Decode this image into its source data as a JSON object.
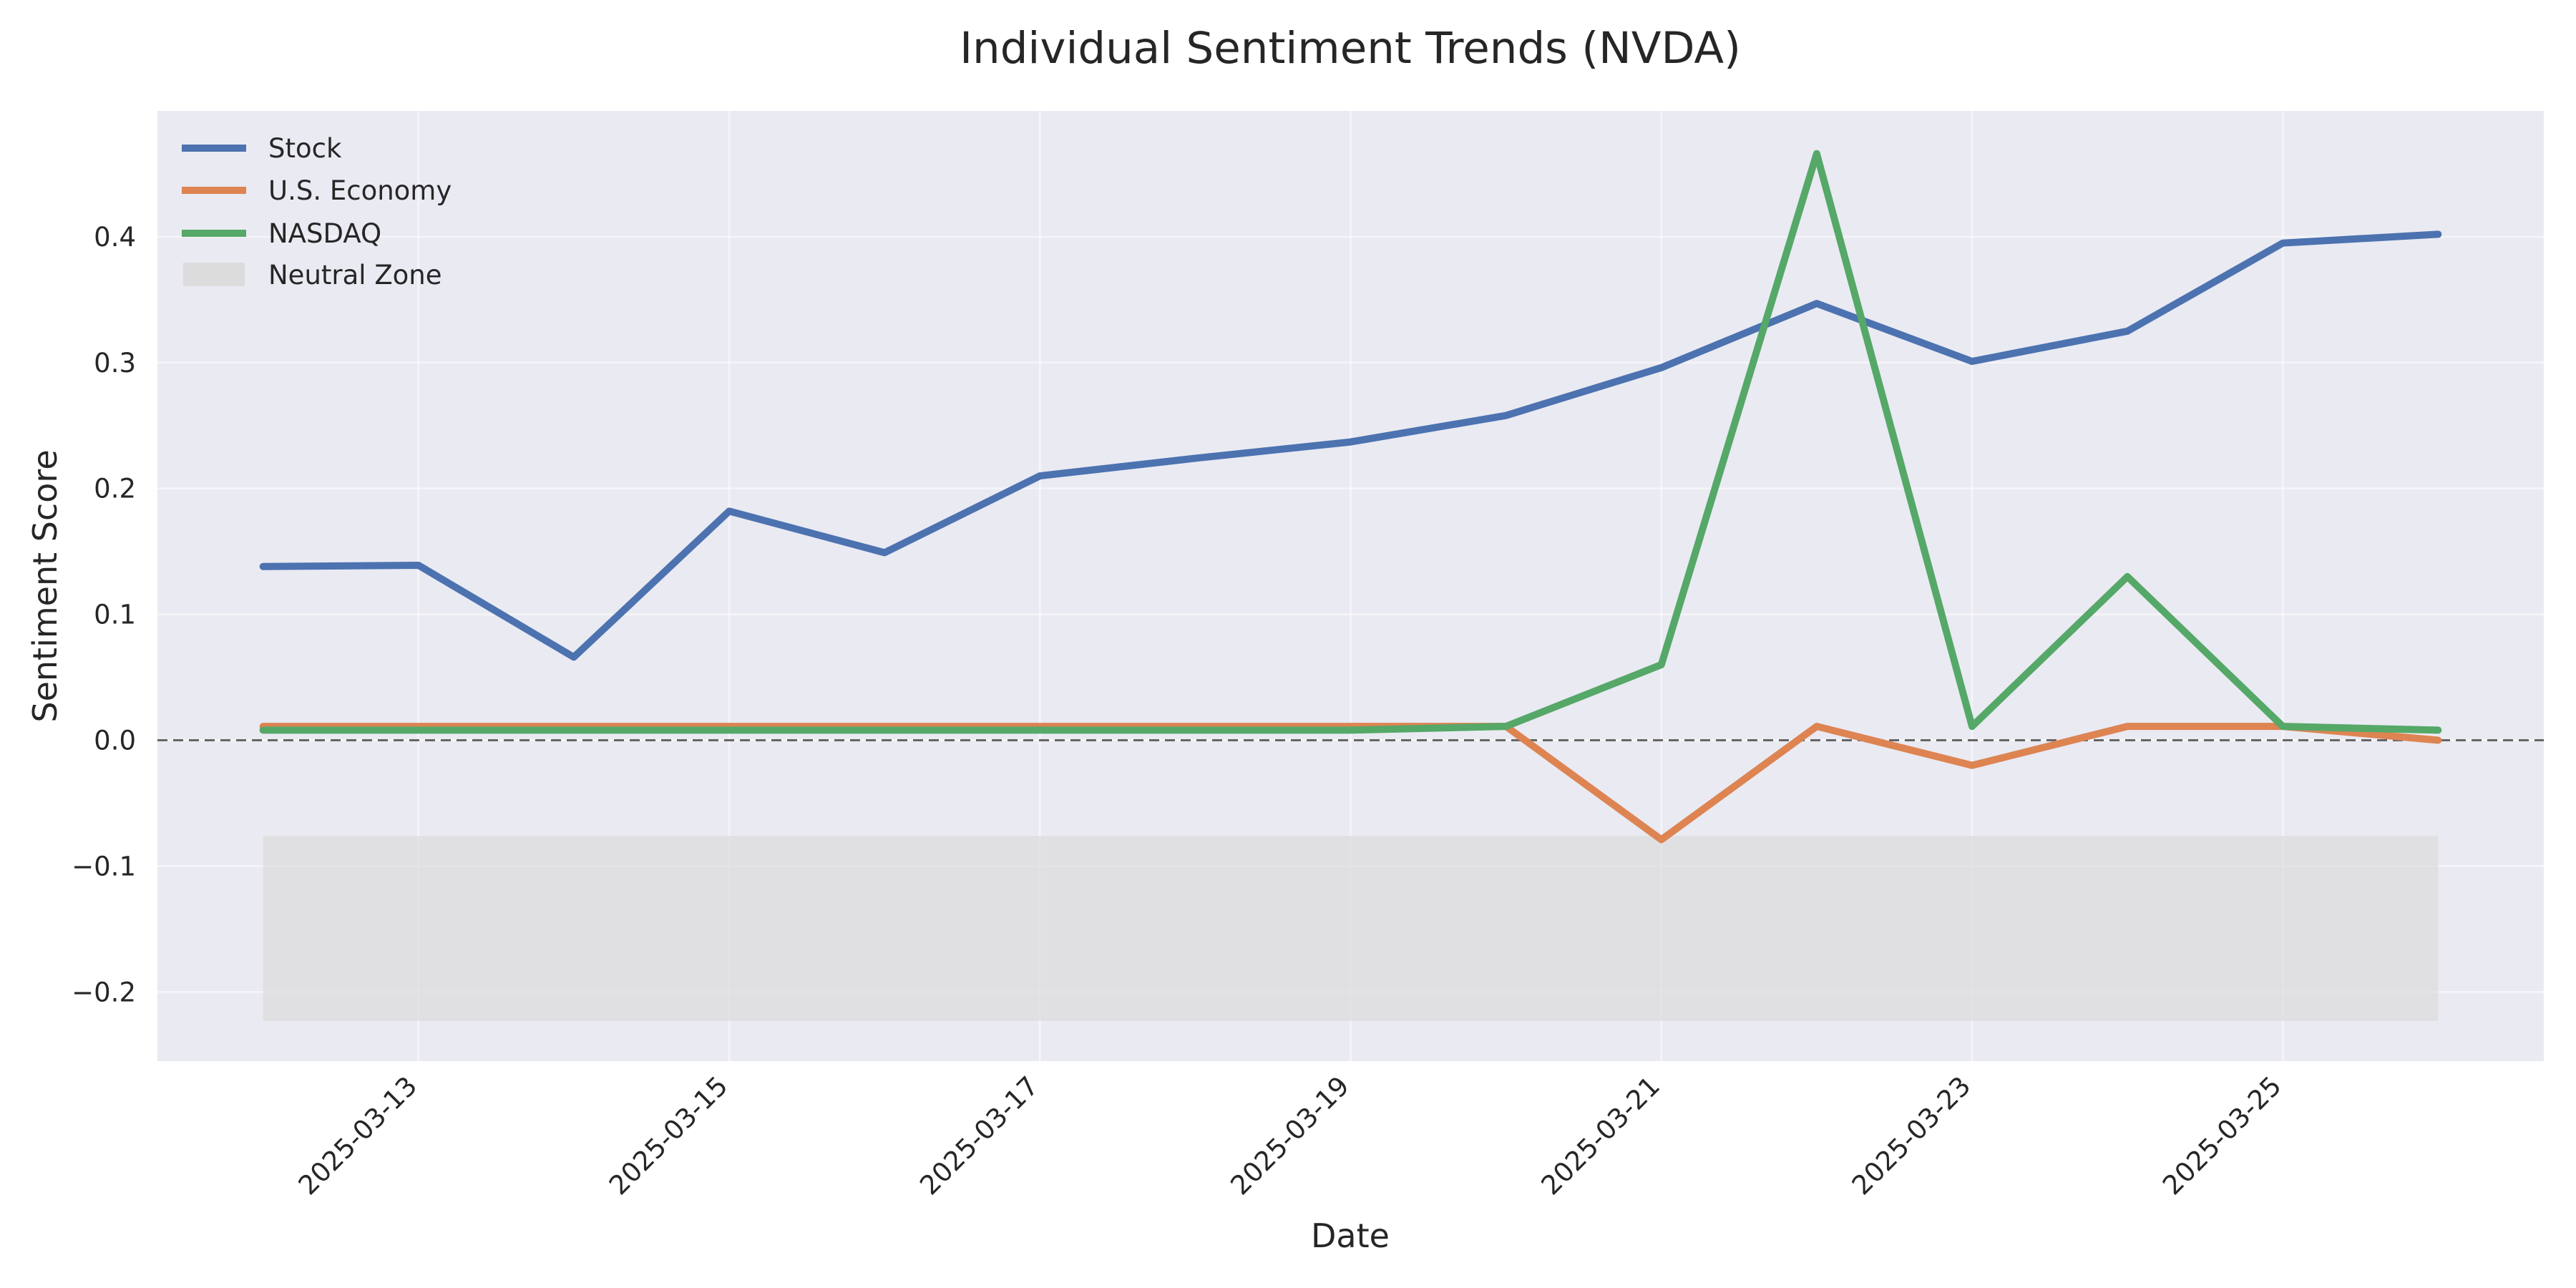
{
  "chart_data": {
    "type": "line",
    "title": "Individual Sentiment Trends (NVDA)",
    "xlabel": "Date",
    "ylabel": "Sentiment Score",
    "x": [
      "2025-03-12",
      "2025-03-13",
      "2025-03-14",
      "2025-03-15",
      "2025-03-16",
      "2025-03-17",
      "2025-03-18",
      "2025-03-19",
      "2025-03-20",
      "2025-03-21",
      "2025-03-22",
      "2025-03-23",
      "2025-03-24",
      "2025-03-25",
      "2025-03-26"
    ],
    "x_ticks": [
      "2025-03-13",
      "2025-03-15",
      "2025-03-17",
      "2025-03-19",
      "2025-03-21",
      "2025-03-23",
      "2025-03-25"
    ],
    "xlim": [
      "2025-03-11.32",
      "2025-03-26.68"
    ],
    "y_ticks": [
      -0.2,
      -0.1,
      0.0,
      0.1,
      0.2,
      0.3,
      0.4
    ],
    "y_tick_labels": [
      "−0.2",
      "−0.1",
      "0.0",
      "0.1",
      "0.2",
      "0.3",
      "0.4"
    ],
    "ylim": [
      -0.255,
      0.5
    ],
    "series": [
      {
        "name": "Stock",
        "color": "#4c72b0",
        "values": [
          0.138,
          0.139,
          0.066,
          0.182,
          0.149,
          0.21,
          0.224,
          0.237,
          0.258,
          0.296,
          0.347,
          0.301,
          0.325,
          0.395,
          0.402
        ]
      },
      {
        "name": "U.S. Economy",
        "color": "#dd8452",
        "values": [
          0.011,
          0.011,
          0.011,
          0.011,
          0.011,
          0.011,
          0.011,
          0.011,
          0.011,
          -0.079,
          0.011,
          -0.02,
          0.011,
          0.011,
          0.0
        ]
      },
      {
        "name": "NASDAQ",
        "color": "#55a868",
        "values": [
          0.008,
          0.008,
          0.008,
          0.008,
          0.008,
          0.008,
          0.008,
          0.008,
          0.011,
          0.06,
          0.466,
          0.011,
          0.13,
          0.011,
          0.008
        ]
      }
    ],
    "neutral_zone": {
      "name": "Neutral Zone",
      "y_range": [
        -0.223,
        -0.076
      ],
      "x_range": [
        "2025-03-12",
        "2025-03-26"
      ],
      "color": "#dcdcdc"
    },
    "reference_line": {
      "y": 0.0,
      "style": "dashed",
      "color": "#666666"
    },
    "grid": true,
    "background": "#eaeaf2",
    "legend_position": "upper left"
  }
}
